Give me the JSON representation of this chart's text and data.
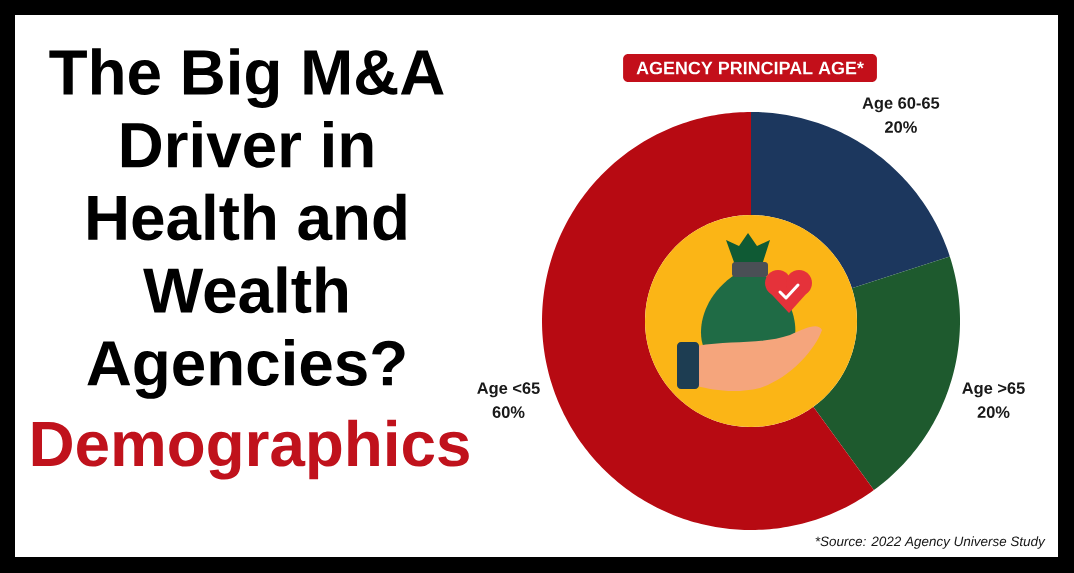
{
  "chart_data": {
    "type": "donut",
    "title": "The Big M&A Driver in Health and Wealth Agencies?",
    "subtitle": "Demographics",
    "categories": [
      "Age 60-65",
      "Age >65",
      "Age <65"
    ],
    "values": [
      20,
      20,
      60
    ],
    "colors": [
      "#1c375e",
      "#1e5a2e",
      "#b70a12"
    ],
    "value_labels": [
      "20%",
      "20%",
      "60%"
    ],
    "annotations": [
      "AGENCY PRINCIPAL AGE*",
      "*Source: 2022 Agency Universe Study"
    ]
  }
}
